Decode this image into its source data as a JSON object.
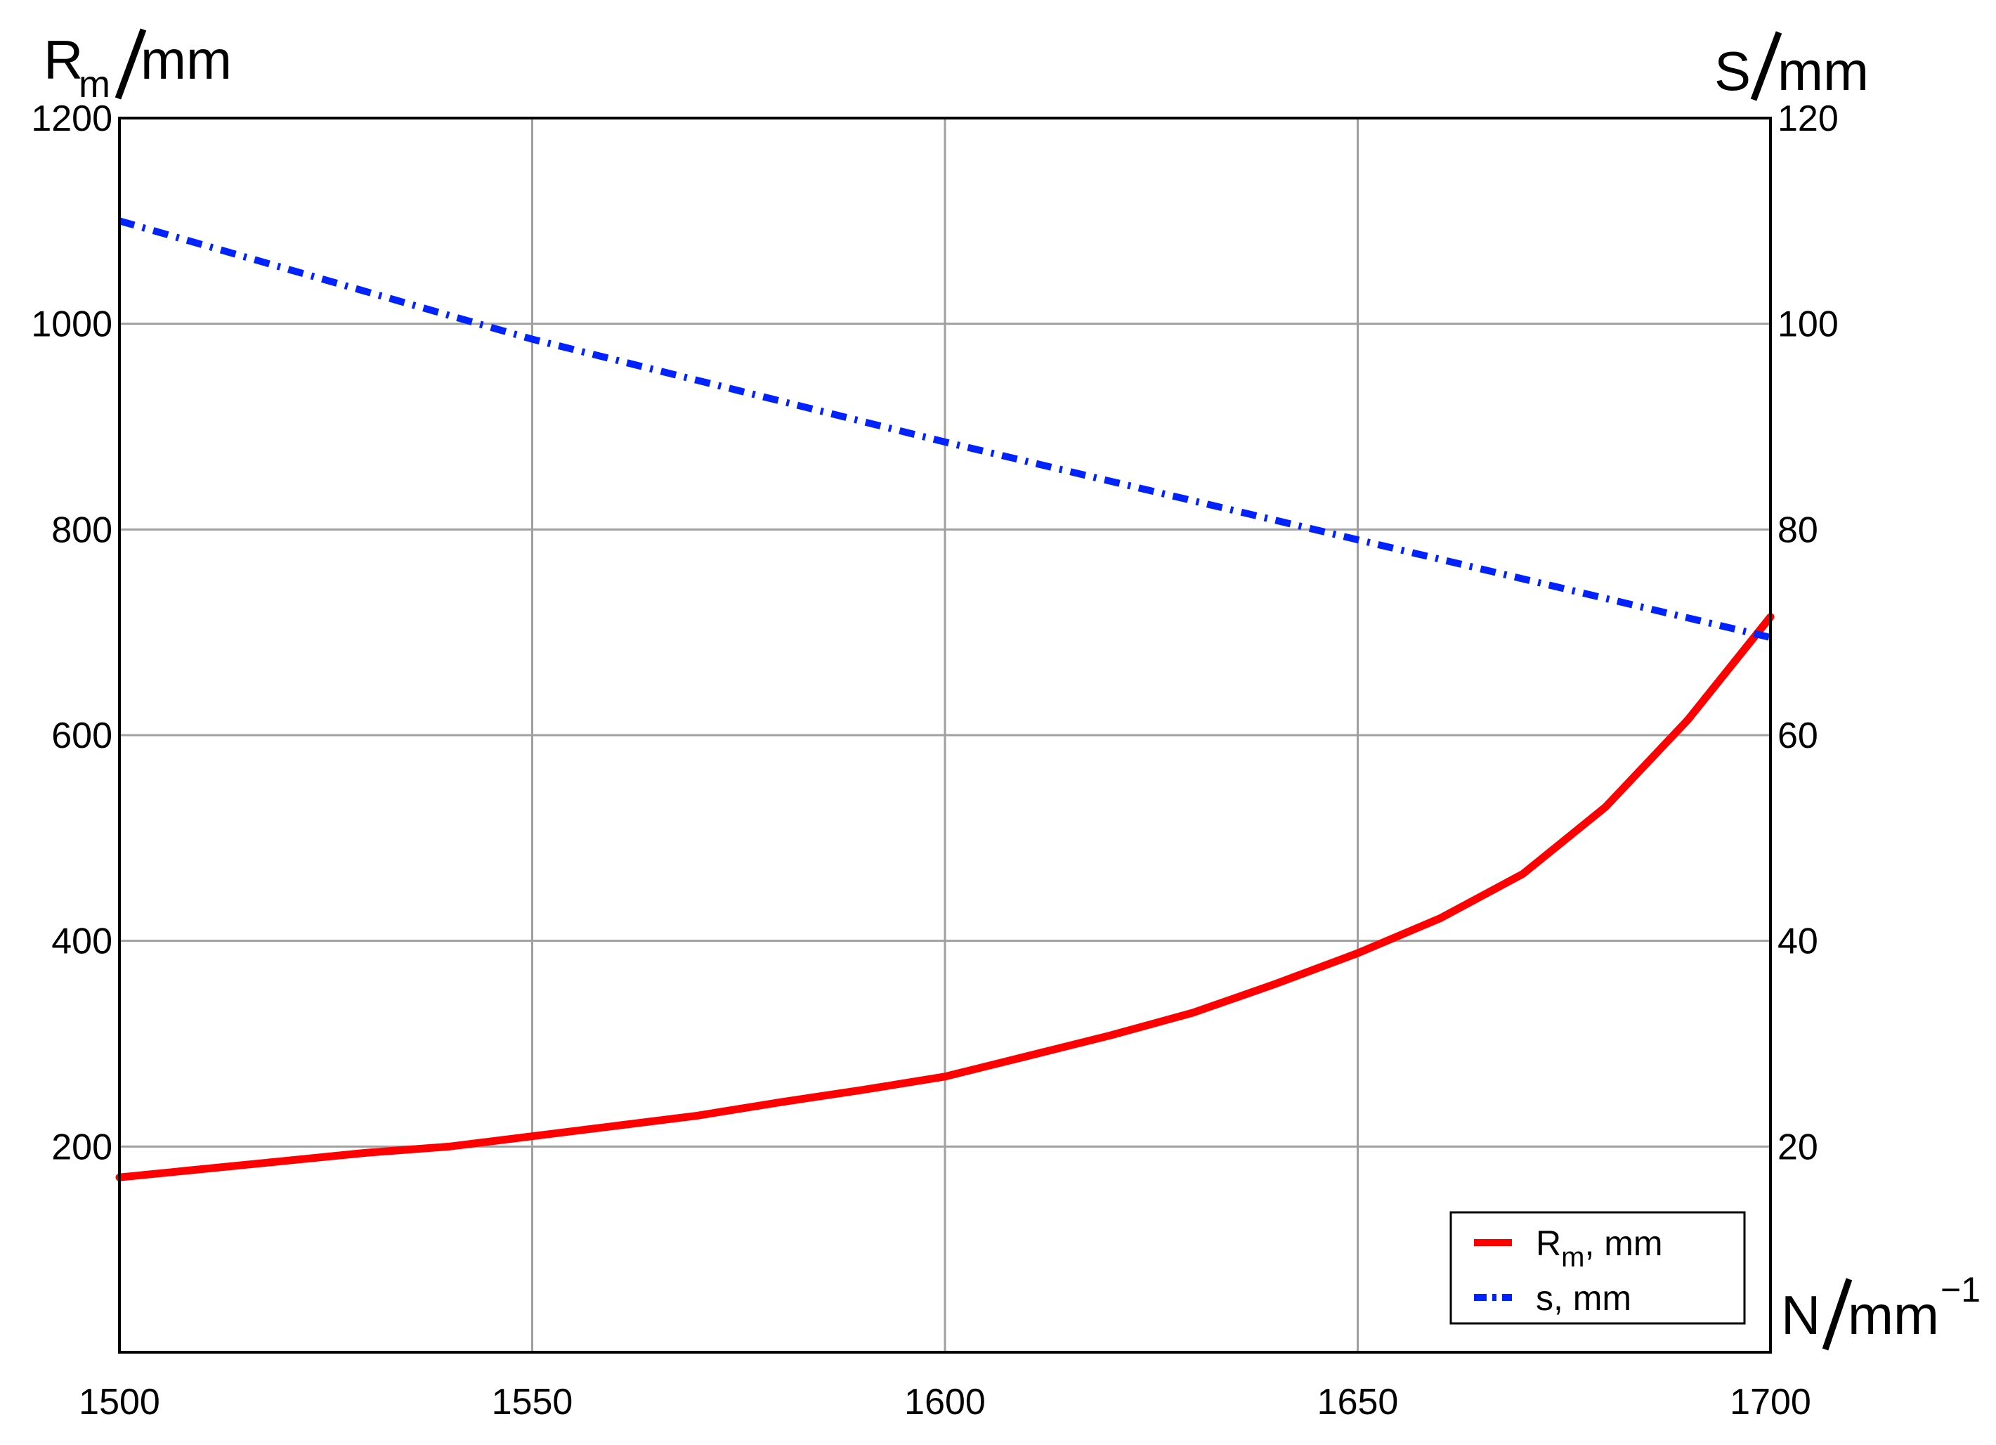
{
  "chart_data": {
    "type": "line",
    "x_axis": {
      "label": "N",
      "unit": "mm",
      "unit_exponent": "−1",
      "range": [
        1500,
        1700
      ],
      "ticks": [
        "1500",
        "1550",
        "1600",
        "1650",
        "1700"
      ],
      "tick_values": [
        1500,
        1550,
        1600,
        1650,
        1700
      ]
    },
    "y_axis_left": {
      "label": "R",
      "label_sub": "m",
      "unit": "mm",
      "range": [
        0,
        1200
      ],
      "ticks": [
        "200",
        "400",
        "600",
        "800",
        "1000",
        "1200"
      ],
      "tick_values": [
        200,
        400,
        600,
        800,
        1000,
        1200
      ]
    },
    "y_axis_right": {
      "label": "S",
      "unit": "mm",
      "range": [
        0,
        120
      ],
      "ticks": [
        "20",
        "40",
        "60",
        "80",
        "100",
        "120"
      ],
      "tick_values": [
        20,
        40,
        60,
        80,
        100,
        120
      ]
    },
    "grid": true,
    "legend_position": "bottom-right",
    "series": [
      {
        "name": "R",
        "name_sub": "m",
        "name_suffix": ", mm",
        "axis": "left",
        "color": "#ff0000",
        "style": "solid",
        "x": [
          1500,
          1510,
          1520,
          1530,
          1540,
          1550,
          1560,
          1570,
          1580,
          1590,
          1600,
          1610,
          1620,
          1630,
          1640,
          1650,
          1660,
          1670,
          1680,
          1690,
          1700
        ],
        "y": [
          170,
          178,
          186,
          194,
          200,
          210,
          220,
          230,
          243,
          255,
          268,
          288,
          308,
          330,
          358,
          388,
          422,
          465,
          530,
          615,
          715
        ]
      },
      {
        "name": "s",
        "name_suffix": ", mm",
        "axis": "right",
        "color": "#0022ff",
        "style": "dashdot",
        "x": [
          1500,
          1550,
          1600,
          1650,
          1700
        ],
        "y": [
          110,
          98.5,
          88.5,
          79,
          69.5
        ]
      }
    ]
  }
}
